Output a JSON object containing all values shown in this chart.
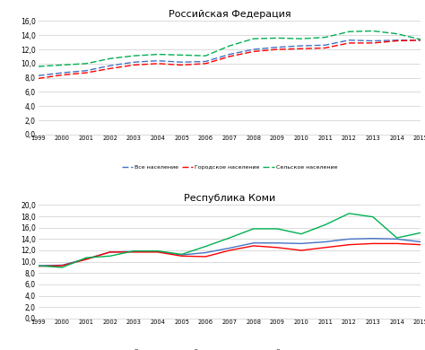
{
  "years": [
    1999,
    2000,
    2001,
    2002,
    2003,
    2004,
    2005,
    2006,
    2007,
    2008,
    2009,
    2010,
    2011,
    2012,
    2013,
    2014,
    2015
  ],
  "rf_all": [
    8.3,
    8.7,
    9.0,
    9.7,
    10.2,
    10.4,
    10.2,
    10.3,
    11.3,
    12.0,
    12.3,
    12.5,
    12.6,
    13.3,
    13.2,
    13.3,
    13.3
  ],
  "rf_urban": [
    7.9,
    8.4,
    8.7,
    9.3,
    9.8,
    10.0,
    9.8,
    10.0,
    11.0,
    11.7,
    12.0,
    12.1,
    12.2,
    12.9,
    12.9,
    13.2,
    13.3
  ],
  "rf_rural": [
    9.6,
    9.8,
    10.0,
    10.7,
    11.1,
    11.3,
    11.2,
    11.1,
    12.5,
    13.5,
    13.6,
    13.5,
    13.7,
    14.5,
    14.6,
    14.2,
    13.4
  ],
  "komi_all": [
    9.3,
    9.4,
    10.5,
    11.7,
    11.8,
    11.8,
    11.2,
    11.6,
    12.4,
    13.3,
    13.3,
    13.2,
    13.5,
    14.0,
    14.1,
    14.0,
    13.5
  ],
  "komi_urban": [
    9.2,
    9.3,
    10.4,
    11.7,
    11.7,
    11.7,
    11.0,
    10.9,
    12.0,
    12.8,
    12.5,
    12.0,
    12.5,
    13.0,
    13.2,
    13.2,
    13.0
  ],
  "komi_rural": [
    9.3,
    9.0,
    10.7,
    11.0,
    11.9,
    11.9,
    11.3,
    12.7,
    14.2,
    15.8,
    15.8,
    14.9,
    16.5,
    18.5,
    17.9,
    14.2,
    15.1
  ],
  "title1": "Российская Федерация",
  "title2": "Республика Коми",
  "legend_all": "Все население",
  "legend_urban": "Городское население",
  "legend_rural": "Сельское население",
  "color_all": "#4472C4",
  "color_urban": "#FF0000",
  "color_rural": "#00B050",
  "ylim1": [
    0,
    16
  ],
  "ylim2": [
    0,
    20
  ],
  "yticks1": [
    0.0,
    2.0,
    4.0,
    6.0,
    8.0,
    10.0,
    12.0,
    14.0,
    16.0
  ],
  "yticks2": [
    0.0,
    2.0,
    4.0,
    6.0,
    8.0,
    10.0,
    12.0,
    14.0,
    16.0,
    18.0,
    20.0
  ]
}
